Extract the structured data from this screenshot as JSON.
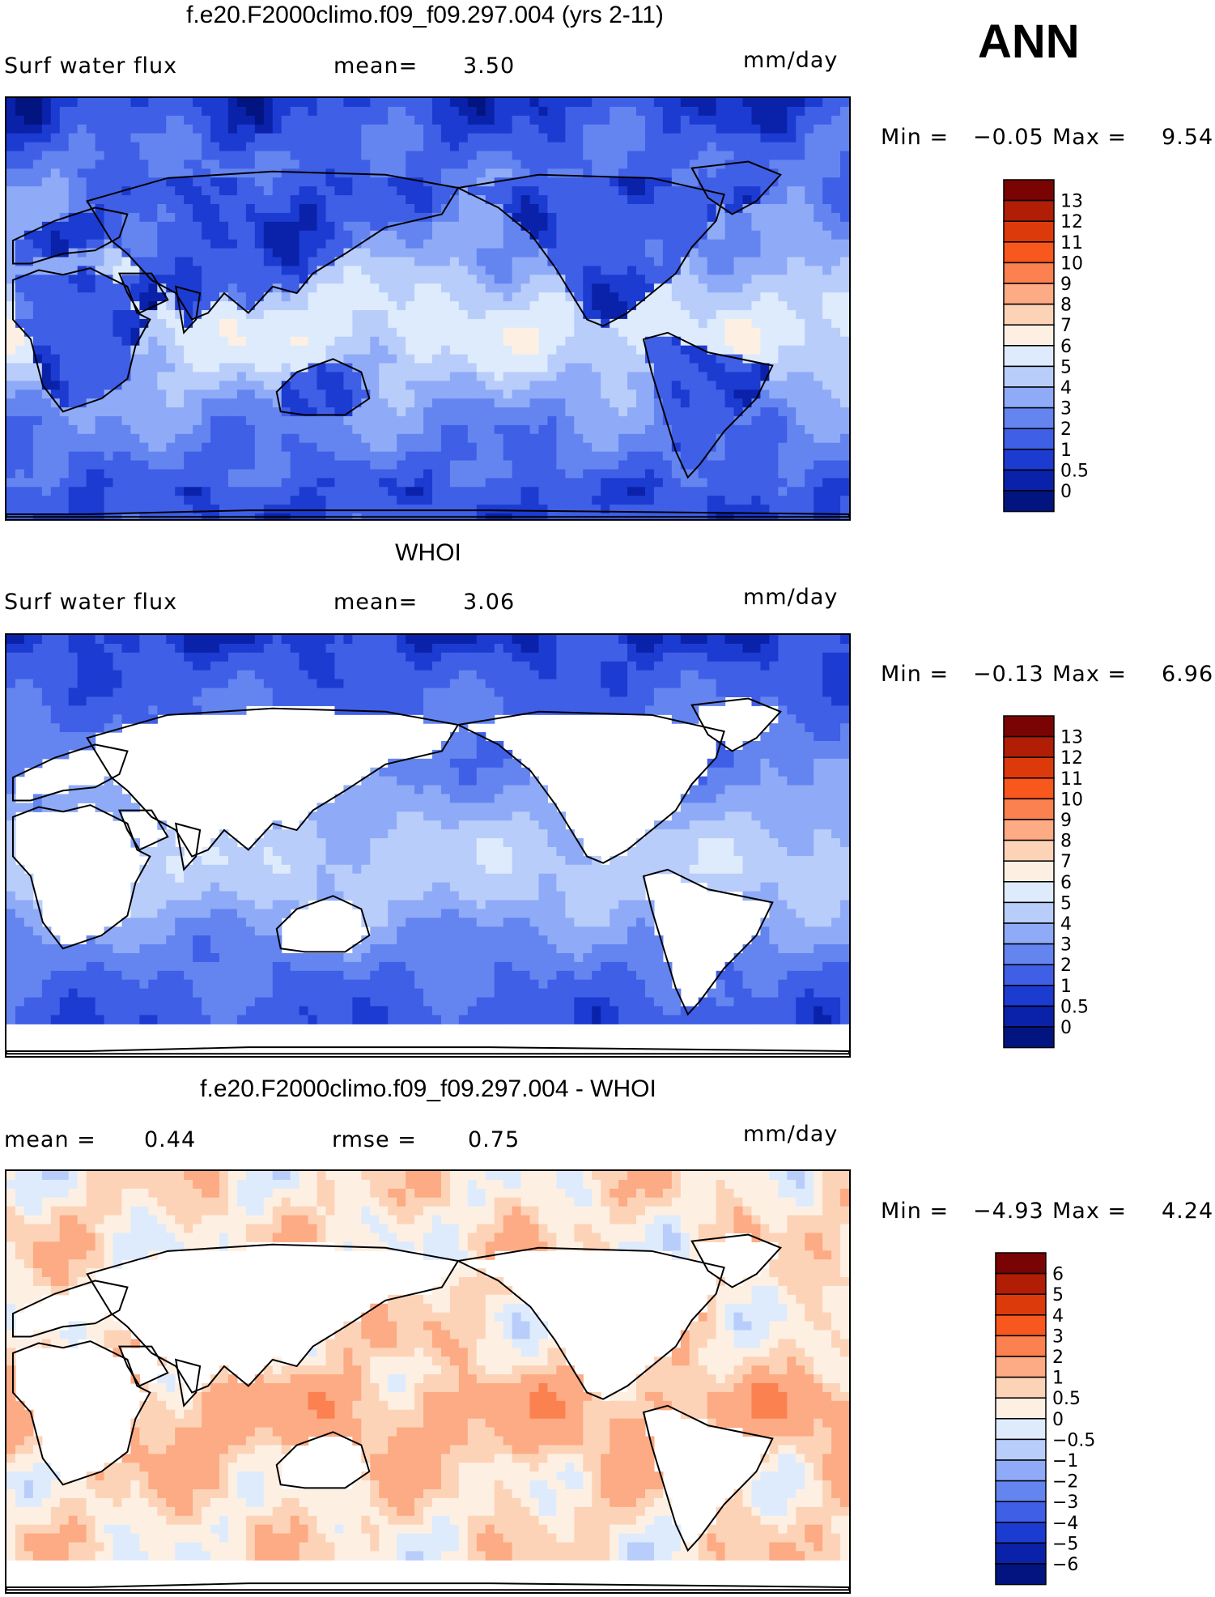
{
  "season": "ANN",
  "panels": [
    {
      "title": "f.e20.F2000climo.f09_f09.297.004 (yrs 2-11)",
      "left_label": "Surf water flux",
      "mid_label": "mean=",
      "mid_value": "3.50",
      "units": "mm/day",
      "min_label": "Min =",
      "min_value": "−0.05",
      "max_label": "Max =",
      "max_value": "9.54",
      "field": "model",
      "colorbar": {
        "ticks": [
          "13",
          "12",
          "11",
          "10",
          "9",
          "8",
          "7",
          "6",
          "5",
          "4",
          "3",
          "2",
          "1",
          "0.5",
          "0"
        ],
        "colors": [
          "#7a0403",
          "#b11d05",
          "#dc3a0b",
          "#f8581d",
          "#fc8150",
          "#fcab84",
          "#fdd3b8",
          "#fdf0e3",
          "#deebfc",
          "#b9cdfb",
          "#8fabf7",
          "#6485f0",
          "#3f5fe6",
          "#1c3bd1",
          "#0a22aa",
          "#021480"
        ]
      }
    },
    {
      "title": "WHOI",
      "left_label": "Surf water flux",
      "mid_label": "mean=",
      "mid_value": "3.06",
      "units": "mm/day",
      "min_label": "Min =",
      "min_value": "−0.13",
      "max_label": "Max =",
      "max_value": "6.96",
      "field": "obs",
      "colorbar": {
        "ticks": [
          "13",
          "12",
          "11",
          "10",
          "9",
          "8",
          "7",
          "6",
          "5",
          "4",
          "3",
          "2",
          "1",
          "0.5",
          "0"
        ],
        "colors": [
          "#7a0403",
          "#b11d05",
          "#dc3a0b",
          "#f8581d",
          "#fc8150",
          "#fcab84",
          "#fdd3b8",
          "#fdf0e3",
          "#deebfc",
          "#b9cdfb",
          "#8fabf7",
          "#6485f0",
          "#3f5fe6",
          "#1c3bd1",
          "#0a22aa",
          "#021480"
        ]
      }
    },
    {
      "title": "f.e20.F2000climo.f09_f09.297.004 - WHOI",
      "left_label": "mean =",
      "left_value": "0.44",
      "mid_label": "rmse =",
      "mid_value": "0.75",
      "units": "mm/day",
      "min_label": "Min =",
      "min_value": "−4.93",
      "max_label": "Max =",
      "max_value": "4.24",
      "field": "diff",
      "colorbar": {
        "ticks": [
          "6",
          "5",
          "4",
          "3",
          "2",
          "1",
          "0.5",
          "0",
          "−0.5",
          "−1",
          "−2",
          "−3",
          "−4",
          "−5",
          "−6"
        ],
        "colors": [
          "#7a0403",
          "#b11d05",
          "#dc3a0b",
          "#f8581d",
          "#fc8150",
          "#fcab84",
          "#fdd3b8",
          "#fdf0e3",
          "#deebfc",
          "#b9cdfb",
          "#8fabf7",
          "#6485f0",
          "#3f5fe6",
          "#1c3bd1",
          "#0a22aa",
          "#021480"
        ]
      }
    }
  ]
}
